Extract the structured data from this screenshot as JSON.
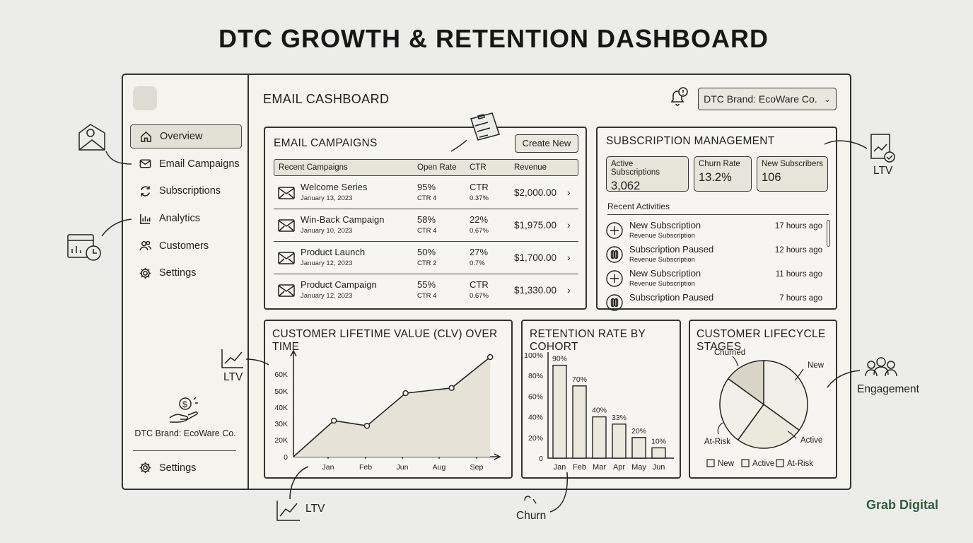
{
  "page_title": "DTC GROWTH & RETENTION DASHBOARD",
  "sidebar": {
    "items": [
      {
        "label": "Overview",
        "icon": "home-icon",
        "active": true
      },
      {
        "label": "Email Campaigns",
        "icon": "mail-icon"
      },
      {
        "label": "Subscriptions",
        "icon": "refresh-icon"
      },
      {
        "label": "Analytics",
        "icon": "bar-chart-icon"
      },
      {
        "label": "Customers",
        "icon": "users-icon"
      },
      {
        "label": "Settings",
        "icon": "gear-icon"
      }
    ],
    "brand": "DTC Brand: EcoWare Co.",
    "footer_settings": "Settings"
  },
  "header": {
    "title": "EMAIL CASHBOARD",
    "brand_selector": "DTC Brand: EcoWare Co."
  },
  "email_campaigns": {
    "title": "EMAIL CAMPAIGNS",
    "create_button": "Create New",
    "columns": [
      "Recent Campaigns",
      "Open Rate",
      "CTR",
      "Revenue"
    ],
    "rows": [
      {
        "name": "Welcome Series",
        "date": "January 13, 2023",
        "open": "95%",
        "open_sub": "CTR 4",
        "ctr": "CTR",
        "ctr_sub": "0.37%",
        "revenue": "$2,000.00"
      },
      {
        "name": "Win-Back Campaign",
        "date": "January 10, 2023",
        "open": "58%",
        "open_sub": "CTR 4",
        "ctr": "22%",
        "ctr_sub": "0.67%",
        "revenue": "$1,975.00"
      },
      {
        "name": "Product Launch",
        "date": "January 12, 2023",
        "open": "50%",
        "open_sub": "CTR 2",
        "ctr": "27%",
        "ctr_sub": "0.7%",
        "revenue": "$1,700.00"
      },
      {
        "name": "Product Campaign",
        "date": "January 12, 2023",
        "open": "55%",
        "open_sub": "CTR 4",
        "ctr": "CTR",
        "ctr_sub": "0.67%",
        "revenue": "$1,330.00"
      }
    ]
  },
  "subscriptions": {
    "title": "SUBSCRIPTION MANAGEMENT",
    "kpis": [
      {
        "label": "Active Subscriptions",
        "value": "3,062"
      },
      {
        "label": "Churn Rate",
        "value": "13.2%"
      },
      {
        "label": "New Subscribers",
        "value": "106"
      }
    ],
    "recent_label": "Recent Activities",
    "activities": [
      {
        "title": "New Subscription",
        "sub": "Revenue Subscription",
        "time": "17 hours ago",
        "icon": "plus-circle-icon"
      },
      {
        "title": "Subscription Paused",
        "sub": "Revenue Subscription",
        "time": "12 hours ago",
        "icon": "pause-circle-icon"
      },
      {
        "title": "New Subscription",
        "sub": "Revenue Subscription",
        "time": "11 hours ago",
        "icon": "plus-circle-icon"
      },
      {
        "title": "Subscription Paused",
        "sub": "",
        "time": "7 hours ago",
        "icon": "pause-circle-icon"
      }
    ]
  },
  "chart_data": [
    {
      "type": "area",
      "title": "CUSTOMER LIFETIME VALUE (CLV) OVER TIME",
      "x": [
        "Jan",
        "Feb",
        "Jun",
        "Aug",
        "Sep"
      ],
      "y_ticks": [
        "0",
        "20K",
        "30K",
        "40K",
        "50K",
        "60K"
      ],
      "points": [
        {
          "x_pos": 0,
          "y": 0
        },
        {
          "x_pos": 1.1,
          "y": 21000
        },
        {
          "x_pos": 2,
          "y": 18000
        },
        {
          "x_pos": 3.05,
          "y": 37000
        },
        {
          "x_pos": 4.3,
          "y": 40000
        },
        {
          "x_pos": 5.35,
          "y": 58000
        }
      ],
      "ylim": [
        0,
        65000
      ]
    },
    {
      "type": "bar",
      "title": "RETENTION RATE BY COHORT",
      "categories": [
        "Jan",
        "Feb",
        "Mar",
        "Apr",
        "May",
        "Jun"
      ],
      "values": [
        90,
        70,
        40,
        33,
        20,
        10
      ],
      "data_labels": [
        "90%",
        "70%",
        "40%",
        "33%",
        "20%",
        "10%"
      ],
      "y_ticks": [
        "0",
        "20%",
        "40%",
        "60%",
        "80%",
        "100%"
      ],
      "ylim": [
        0,
        100
      ]
    },
    {
      "type": "pie",
      "title": "CUSTOMER LIFECYCLE STAGES",
      "slices": [
        {
          "label": "New",
          "value": 35,
          "color": "#f1efe7"
        },
        {
          "label": "Active",
          "value": 25,
          "color": "#ebe8dc"
        },
        {
          "label": "At-Risk",
          "value": 25,
          "color": "#f1efe7"
        },
        {
          "label": "Churned",
          "value": 15,
          "color": "#d9d4c4"
        }
      ],
      "legend": [
        "New",
        "Active",
        "At-Risk"
      ]
    }
  ],
  "annotations": {
    "ltv_right": "LTV",
    "ltv_left": "LTV",
    "ltv_bottom": "LTV",
    "engagement": "Engagement",
    "churn": "Churn"
  },
  "watermark": "Grab Digital"
}
